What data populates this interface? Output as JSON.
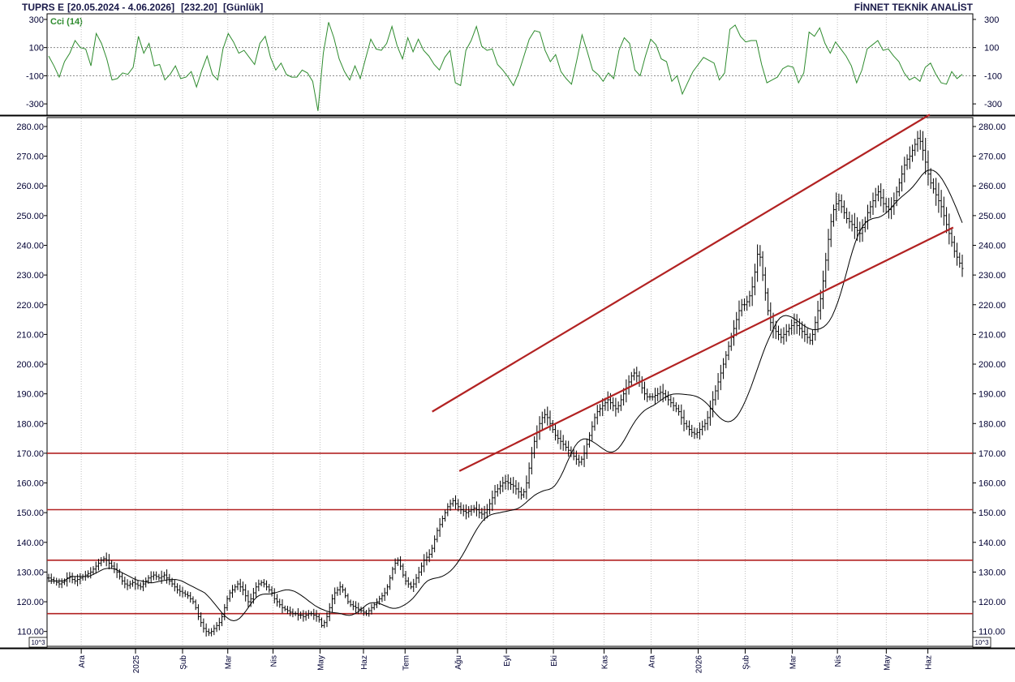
{
  "header": {
    "symbol": "TUPRS E",
    "range": "[20.05.2024 - 4.06.2026]",
    "last": "[232.20]",
    "period": "[Günlük]",
    "brand": "FİNNET TEKNİK ANALİST"
  },
  "colors": {
    "price_bars": "#000000",
    "moving_average": "#000000",
    "cci_line": "#2e8b2e",
    "trend_lines": "#b22222",
    "grid": "#bfbfbf",
    "text": "#000033"
  },
  "scale_note": "10^3",
  "chart_data": [
    {
      "type": "line",
      "label": "Cci (14)",
      "yticks": [
        300,
        100,
        -100,
        -300
      ],
      "ylim": [
        -380,
        340
      ],
      "reference_lines": [
        100,
        -100
      ],
      "x_index_range": [
        0,
        505
      ],
      "values": [
        40,
        -30,
        -110,
        0,
        60,
        150,
        100,
        90,
        -30,
        200,
        130,
        20,
        -130,
        -120,
        -80,
        -90,
        -40,
        180,
        60,
        130,
        -30,
        -20,
        -130,
        -90,
        -30,
        -120,
        -110,
        -70,
        -180,
        -60,
        40,
        -90,
        -130,
        90,
        200,
        140,
        60,
        80,
        30,
        -20,
        130,
        180,
        30,
        -60,
        -10,
        -90,
        -110,
        -110,
        -60,
        -80,
        -140,
        -350,
        60,
        280,
        170,
        20,
        -70,
        -130,
        -30,
        -120,
        20,
        160,
        90,
        80,
        130,
        250,
        110,
        20,
        170,
        70,
        160,
        80,
        40,
        -20,
        -60,
        30,
        80,
        -150,
        -170,
        80,
        150,
        250,
        110,
        80,
        90,
        -20,
        -60,
        -110,
        -170,
        -80,
        40,
        160,
        220,
        210,
        80,
        0,
        50,
        -70,
        -120,
        -160,
        10,
        190,
        70,
        -60,
        -90,
        -140,
        -80,
        -120,
        80,
        170,
        130,
        -60,
        -100,
        40,
        160,
        120,
        20,
        0,
        -140,
        -100,
        -230,
        -150,
        -70,
        -20,
        30,
        10,
        -10,
        -130,
        -80,
        230,
        260,
        180,
        140,
        150,
        150,
        -20,
        -150,
        -130,
        -110,
        -50,
        -30,
        -40,
        -150,
        -80,
        210,
        180,
        240,
        130,
        60,
        140,
        90,
        40,
        -30,
        -150,
        -60,
        90,
        120,
        150,
        80,
        90,
        40,
        0,
        -80,
        -130,
        -110,
        -140,
        -40,
        -10,
        -90,
        -150,
        -160,
        -70,
        -120,
        -90
      ],
      "xlabel": "",
      "ylabel": ""
    },
    {
      "type": "ohlc",
      "yticks": [
        "280.00",
        "270.00",
        "260.00",
        "250.00",
        "240.00",
        "230.00",
        "220.00",
        "210.00",
        "200.00",
        "190.00",
        "180.00",
        "170.00",
        "160.00",
        "150.00",
        "140.00",
        "130.00",
        "120.00",
        "110.00"
      ],
      "ylim": [
        105,
        283
      ],
      "x_index_range": [
        0,
        505
      ],
      "xticks": [
        {
          "label": "Ara",
          "index": 18
        },
        {
          "label": "2025",
          "index": 48
        },
        {
          "label": "Şub",
          "index": 74
        },
        {
          "label": "Mar",
          "index": 99
        },
        {
          "label": "Nis",
          "index": 124
        },
        {
          "label": "May",
          "index": 150
        },
        {
          "label": "Haz",
          "index": 174
        },
        {
          "label": "Tem",
          "index": 197
        },
        {
          "label": "Ağu",
          "index": 226
        },
        {
          "label": "Eyl",
          "index": 253
        },
        {
          "label": "Eki",
          "index": 279
        },
        {
          "label": "Kas",
          "index": 307
        },
        {
          "label": "Ara",
          "index": 333
        },
        {
          "label": "2026",
          "index": 359
        },
        {
          "label": "Şub",
          "index": 385
        },
        {
          "label": "Mar",
          "index": 411
        },
        {
          "label": "Nis",
          "index": 436
        },
        {
          "label": "May",
          "index": 463
        },
        {
          "label": "Haz",
          "index": 486
        }
      ],
      "closes": [
        128,
        127.5,
        127,
        126.5,
        126,
        126.5,
        127,
        128,
        128.5,
        127.5,
        127,
        127.5,
        128,
        128.5,
        129,
        129.5,
        130,
        131,
        132,
        133,
        134,
        134.5,
        134,
        133,
        132,
        131,
        130,
        128.5,
        127,
        126,
        125.5,
        126,
        126.5,
        126,
        125.5,
        125,
        126,
        127,
        128,
        128.5,
        129,
        128.5,
        128,
        128.5,
        129,
        128,
        127,
        126,
        125,
        124,
        123.5,
        123,
        122.5,
        122,
        121,
        120,
        118,
        115,
        113,
        111,
        110,
        109.5,
        110,
        111,
        112,
        113,
        115,
        118,
        121,
        123,
        124,
        125,
        126,
        125,
        124,
        122,
        120,
        121,
        123,
        125,
        126,
        126.5,
        126,
        125,
        124,
        123,
        121,
        120,
        119,
        118,
        117.5,
        117,
        116.5,
        116,
        116,
        115.5,
        115.5,
        115,
        115.5,
        116,
        116,
        115.5,
        115,
        114,
        112,
        113,
        115,
        118,
        121,
        123,
        124,
        125,
        124,
        122,
        120,
        119,
        118.5,
        118,
        117.5,
        117,
        116.5,
        116,
        117,
        118,
        119,
        120,
        121,
        122,
        123,
        125,
        128,
        131,
        133,
        134,
        132,
        129,
        127,
        126,
        125,
        126,
        128,
        130,
        132,
        134,
        135,
        136,
        138,
        141,
        144,
        146,
        148,
        150,
        152,
        153,
        154,
        153,
        152,
        151,
        150.5,
        150,
        150.5,
        151,
        151.5,
        151,
        150,
        149.5,
        150,
        151,
        153,
        155,
        157,
        158,
        159,
        160,
        160.5,
        160,
        159.5,
        159,
        158,
        157,
        156,
        157,
        160,
        165,
        170,
        174,
        177,
        180,
        182,
        183,
        182,
        180,
        178,
        176,
        175,
        174,
        173,
        172,
        171,
        170,
        169,
        168,
        167,
        168,
        170,
        173,
        176,
        179,
        182,
        184,
        185,
        186,
        187,
        188,
        187,
        186,
        185,
        186,
        188,
        190,
        192,
        194,
        196,
        197,
        196,
        194,
        192,
        190,
        189,
        189,
        189,
        189.5,
        190,
        190.5,
        190,
        189,
        188,
        187,
        186,
        185,
        184,
        182,
        180,
        179,
        178,
        177,
        176.5,
        177,
        178,
        179,
        180,
        182,
        185,
        188,
        191,
        194,
        197,
        200,
        203,
        206,
        209,
        212,
        215,
        218,
        220,
        220,
        221,
        223,
        226,
        231,
        237,
        236,
        230,
        224,
        218,
        214,
        212,
        211,
        210,
        209,
        210,
        211,
        212,
        213,
        214,
        213,
        212,
        211,
        210,
        209,
        208,
        210,
        214,
        218,
        222,
        228,
        235,
        242,
        248,
        252,
        254,
        255,
        253,
        251,
        249,
        248,
        247,
        246,
        245,
        244,
        246,
        248,
        251,
        253,
        255,
        257,
        258,
        256,
        254,
        253,
        252,
        253,
        255,
        258,
        261,
        264,
        267,
        269,
        270,
        272,
        274,
        276,
        275,
        272,
        268,
        264,
        261,
        259,
        257,
        255,
        253,
        250,
        247,
        244,
        241,
        238,
        236,
        234,
        232.2
      ],
      "ma": [
        127,
        127,
        127,
        127,
        127,
        127,
        127.5,
        128,
        128.5,
        128.5,
        128.5,
        128.5,
        128.5,
        128.5,
        128.6,
        129,
        129.5,
        130,
        130.5,
        131,
        131.2,
        131.3,
        131.2,
        131,
        130.5,
        130,
        129.5,
        129,
        128.5,
        128,
        127.5,
        127.2,
        127,
        126.8,
        126.6,
        126.4,
        126.4,
        126.6,
        126.8,
        127,
        127.2,
        127.4,
        127.5,
        127.5,
        127.5,
        127.3,
        127,
        126.5,
        126,
        125.5,
        125,
        124.5,
        124,
        123.5,
        123,
        122,
        121,
        119.8,
        118.6,
        117.4,
        116.2,
        115.2,
        114.4,
        113.8,
        113.6,
        113.8,
        114.4,
        115.4,
        116.6,
        118,
        119.4,
        120.6,
        121.6,
        122.2,
        122.5,
        122.6,
        122.6,
        122.7,
        122.9,
        123.2,
        123.5,
        123.8,
        124,
        124,
        123.8,
        123.5,
        123,
        122.4,
        121.7,
        121,
        120.2,
        119.5,
        118.8,
        118.2,
        117.7,
        117.3,
        116.9,
        116.6,
        116.4,
        116.3,
        116.2,
        116,
        115.7,
        115.5,
        115.4,
        115.6,
        116,
        116.6,
        117.4,
        118.2,
        119,
        119.5,
        119.7,
        119.7,
        119.5,
        119.2,
        118.8,
        118.4,
        118,
        117.8,
        117.8,
        118,
        118.4,
        118.9,
        119.5,
        120.3,
        121.2,
        122.3,
        123.6,
        124.9,
        126.1,
        127,
        127.5,
        127.8,
        128,
        128.2,
        128.5,
        129,
        129.6,
        130.4,
        131.4,
        132.6,
        134,
        135.5,
        137.2,
        139,
        140.8,
        142.6,
        144.3,
        145.8,
        147.1,
        148.1,
        148.8,
        149.3,
        149.6,
        149.8,
        150,
        150.2,
        150.4,
        150.6,
        150.8,
        151,
        151.3,
        151.8,
        152.5,
        153.3,
        154.2,
        155,
        155.8,
        156.4,
        156.9,
        157.3,
        157.6,
        157.8,
        158.2,
        159,
        160.3,
        162,
        164,
        166.2,
        168.4,
        170.5,
        172.3,
        173.6,
        174.4,
        174.8,
        174.8,
        174.5,
        174,
        173.4,
        172.7,
        172,
        171.3,
        170.7,
        170.4,
        170.4,
        170.8,
        171.6,
        172.8,
        174.3,
        176,
        177.8,
        179.5,
        181,
        182.3,
        183.4,
        184.3,
        185,
        185.5,
        186,
        186.6,
        187.3,
        188,
        188.7,
        189.3,
        189.7,
        189.9,
        190,
        190,
        189.9,
        189.8,
        189.7,
        189.6,
        189.4,
        189.1,
        188.7,
        188.1,
        187.3,
        186.4,
        185.3,
        184.2,
        183.1,
        182.1,
        181.3,
        180.8,
        180.6,
        180.8,
        181.4,
        182.4,
        183.8,
        185.6,
        187.7,
        190,
        192.5,
        195.2,
        198,
        200.8,
        203.5,
        206.1,
        208.4,
        210.5,
        212.6,
        214.4,
        215.6,
        216.2,
        216.4,
        216.2,
        215.8,
        215.2,
        214.5,
        213.8,
        213.1,
        212.5,
        212,
        211.7,
        211.6,
        211.7,
        212,
        212.5,
        213.3,
        214.5,
        216.2,
        218.4,
        221,
        224,
        227.4,
        231,
        234.6,
        238,
        241,
        243.5,
        245.5,
        247,
        248,
        248.6,
        249,
        249.2,
        249.4,
        249.8,
        250.4,
        251.2,
        252.2,
        253.3,
        254.4,
        255.4,
        256.3,
        257.1,
        257.9,
        258.8,
        259.8,
        261,
        262.3,
        263.6,
        264.6,
        265.2,
        265.4,
        265.2,
        264.6,
        263.6,
        262.3,
        260.7,
        258.9,
        256.9,
        254.7,
        252.4,
        250,
        247.6
      ],
      "trend_lines": [
        {
          "name": "channel-upper",
          "points": [
            [
              212,
              184
            ],
            [
              487,
              284
            ]
          ]
        },
        {
          "name": "channel-lower",
          "points": [
            [
              227,
              164
            ],
            [
              500,
              246
            ]
          ]
        }
      ],
      "horizontal_levels": [
        170,
        151,
        134,
        116
      ],
      "xlabel": "",
      "ylabel": ""
    }
  ]
}
